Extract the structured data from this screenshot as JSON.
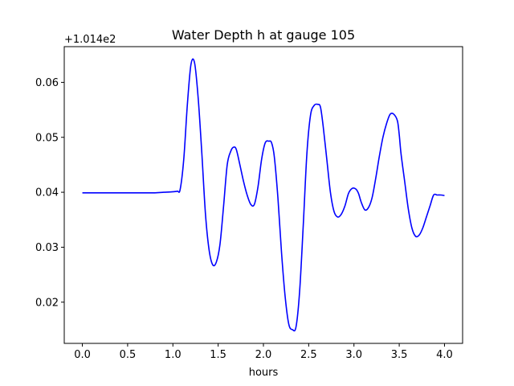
{
  "chart_data": {
    "type": "line",
    "title": "Water Depth h at gauge 105",
    "xlabel": "hours",
    "ylabel": "",
    "y_offset_label": "+1.014e2",
    "xlim": [
      -0.2,
      4.2
    ],
    "ylim": [
      0.0125,
      0.0665
    ],
    "x_ticks": [
      0.0,
      0.5,
      1.0,
      1.5,
      2.0,
      2.5,
      3.0,
      3.5,
      4.0
    ],
    "x_tick_labels": [
      "0.0",
      "0.5",
      "1.0",
      "1.5",
      "2.0",
      "2.5",
      "3.0",
      "3.5",
      "4.0"
    ],
    "y_ticks": [
      0.02,
      0.03,
      0.04,
      0.05,
      0.06
    ],
    "y_tick_labels": [
      "0.02",
      "0.03",
      "0.04",
      "0.05",
      "0.06"
    ],
    "grid": false,
    "series": [
      {
        "color": "#0000ff",
        "x": [
          0.0,
          0.2,
          0.4,
          0.6,
          0.8,
          0.9,
          1.0,
          1.05,
          1.08,
          1.12,
          1.16,
          1.2,
          1.24,
          1.28,
          1.32,
          1.36,
          1.4,
          1.44,
          1.48,
          1.52,
          1.56,
          1.6,
          1.64,
          1.67,
          1.7,
          1.74,
          1.78,
          1.82,
          1.86,
          1.9,
          1.94,
          1.98,
          2.02,
          2.06,
          2.09,
          2.12,
          2.16,
          2.2,
          2.24,
          2.28,
          2.32,
          2.36,
          2.4,
          2.44,
          2.48,
          2.52,
          2.56,
          2.6,
          2.63,
          2.66,
          2.7,
          2.74,
          2.78,
          2.82,
          2.86,
          2.9,
          2.94,
          2.98,
          3.02,
          3.05,
          3.08,
          3.12,
          3.16,
          3.2,
          3.24,
          3.28,
          3.32,
          3.36,
          3.4,
          3.44,
          3.48,
          3.5,
          3.52,
          3.56,
          3.6,
          3.64,
          3.68,
          3.72,
          3.76,
          3.8,
          3.84,
          3.88,
          3.92,
          3.96,
          4.0
        ],
        "y": [
          0.0399,
          0.0399,
          0.0399,
          0.0399,
          0.0399,
          0.04,
          0.0401,
          0.0402,
          0.0405,
          0.046,
          0.056,
          0.0633,
          0.0635,
          0.057,
          0.047,
          0.036,
          0.0295,
          0.0268,
          0.0273,
          0.0305,
          0.0375,
          0.045,
          0.0475,
          0.0482,
          0.0478,
          0.045,
          0.042,
          0.0395,
          0.0378,
          0.0378,
          0.041,
          0.046,
          0.049,
          0.0493,
          0.049,
          0.0465,
          0.039,
          0.029,
          0.021,
          0.016,
          0.015,
          0.0155,
          0.022,
          0.034,
          0.047,
          0.054,
          0.0558,
          0.056,
          0.0555,
          0.052,
          0.046,
          0.04,
          0.0365,
          0.0355,
          0.036,
          0.0375,
          0.0398,
          0.0407,
          0.0406,
          0.0398,
          0.0382,
          0.0368,
          0.0372,
          0.039,
          0.0425,
          0.0465,
          0.05,
          0.0525,
          0.0542,
          0.0542,
          0.053,
          0.0505,
          0.047,
          0.042,
          0.037,
          0.0335,
          0.032,
          0.0322,
          0.0335,
          0.0355,
          0.0375,
          0.0395,
          0.0395,
          0.0395,
          0.0394
        ]
      }
    ]
  }
}
